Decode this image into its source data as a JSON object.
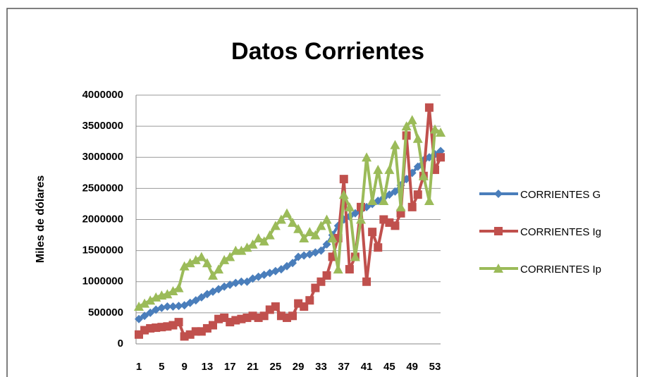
{
  "chart_data": {
    "type": "line",
    "title": "Datos Corrientes",
    "y_label": "Miles de dólares",
    "categories": [
      1,
      null,
      null,
      null,
      5,
      null,
      null,
      null,
      9,
      null,
      null,
      null,
      13,
      null,
      null,
      null,
      17,
      null,
      null,
      null,
      21,
      null,
      null,
      null,
      25,
      null,
      null,
      null,
      29,
      null,
      null,
      null,
      33,
      null,
      null,
      null,
      37,
      null,
      null,
      null,
      41,
      null,
      null,
      null,
      45,
      null,
      null,
      null,
      49,
      null,
      null,
      null,
      53,
      null
    ],
    "ylim": [
      0,
      4000000
    ],
    "yticks": [
      0,
      500000,
      1000000,
      1500000,
      2000000,
      2500000,
      3000000,
      3500000,
      4000000
    ],
    "grid": true,
    "legend": "right",
    "series": [
      {
        "name": "CORRIENTES G",
        "color": "#4a7ebb",
        "marker": "diamond",
        "values": [
          400000,
          450000,
          500000,
          550000,
          580000,
          600000,
          600000,
          610000,
          620000,
          660000,
          700000,
          750000,
          800000,
          840000,
          880000,
          920000,
          950000,
          980000,
          1000000,
          1000000,
          1050000,
          1080000,
          1110000,
          1140000,
          1170000,
          1200000,
          1250000,
          1300000,
          1400000,
          1420000,
          1440000,
          1470000,
          1500000,
          1600000,
          1750000,
          1900000,
          2000000,
          2050000,
          2100000,
          2150000,
          2200000,
          2250000,
          2300000,
          2350000,
          2400000,
          2450000,
          2550000,
          2650000,
          2750000,
          2850000,
          2950000,
          3000000,
          3050000,
          3100000
        ]
      },
      {
        "name": "CORRIENTES Ig",
        "color": "#c0504d",
        "marker": "square",
        "values": [
          150000,
          220000,
          250000,
          260000,
          270000,
          280000,
          300000,
          350000,
          120000,
          150000,
          200000,
          200000,
          250000,
          300000,
          400000,
          420000,
          350000,
          380000,
          400000,
          420000,
          450000,
          420000,
          450000,
          550000,
          600000,
          450000,
          420000,
          450000,
          650000,
          600000,
          700000,
          900000,
          1000000,
          1100000,
          1400000,
          1700000,
          2650000,
          1200000,
          1400000,
          2200000,
          1000000,
          1800000,
          1550000,
          2000000,
          1950000,
          1900000,
          2100000,
          3350000,
          2200000,
          2400000,
          2700000,
          3800000,
          2800000,
          3000000
        ]
      },
      {
        "name": "CORRIENTES Ip",
        "color": "#9bbb59",
        "marker": "triangle",
        "values": [
          600000,
          650000,
          700000,
          750000,
          780000,
          800000,
          850000,
          900000,
          1250000,
          1300000,
          1350000,
          1400000,
          1300000,
          1100000,
          1200000,
          1350000,
          1400000,
          1500000,
          1500000,
          1550000,
          1600000,
          1700000,
          1650000,
          1750000,
          1900000,
          2000000,
          2100000,
          1950000,
          1850000,
          1700000,
          1800000,
          1750000,
          1900000,
          2000000,
          1700000,
          1200000,
          2400000,
          2200000,
          1400000,
          2000000,
          3000000,
          2300000,
          2800000,
          2300000,
          2800000,
          3200000,
          2200000,
          3500000,
          3600000,
          3300000,
          2700000,
          2300000,
          3450000,
          3400000
        ]
      }
    ]
  }
}
